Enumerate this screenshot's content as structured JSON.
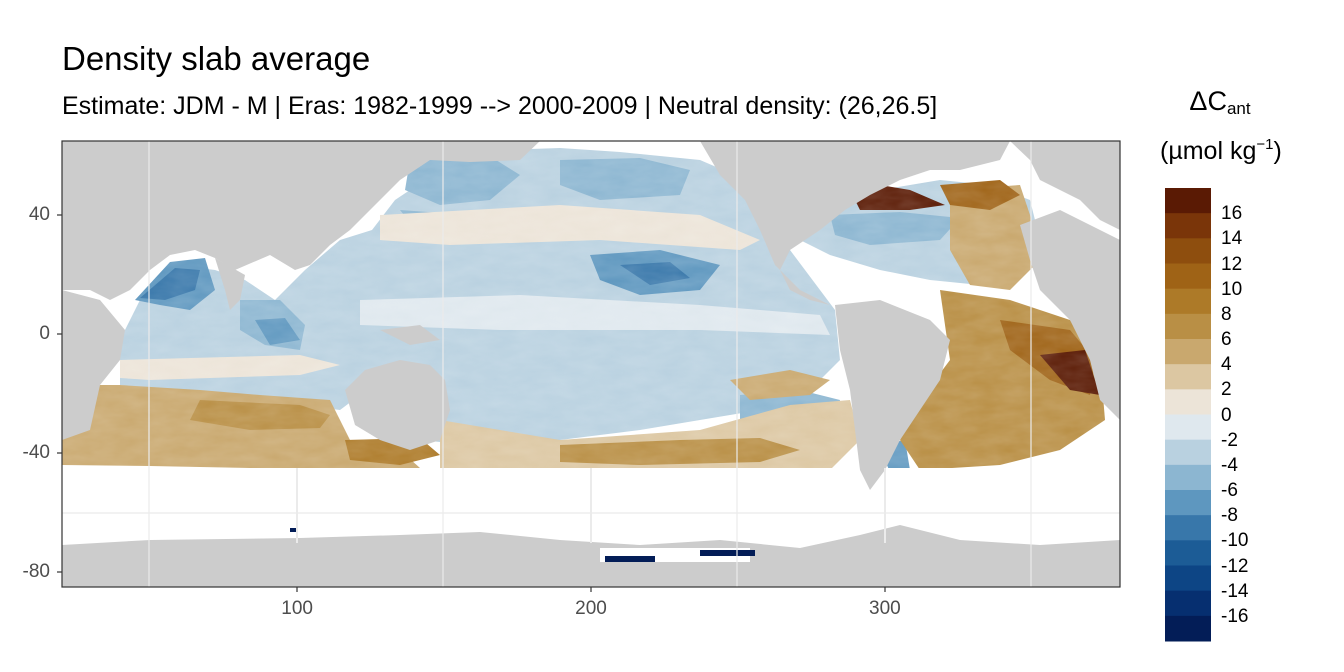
{
  "title": "Density slab average",
  "subtitle": "Estimate: JDM - M | Eras: 1982-1999 --> 2000-2009 | Neutral density: (26,26.5]",
  "legend": {
    "title_main": "ΔC",
    "title_sub": "ant",
    "units_main": "(µmol kg",
    "units_sup": "−1",
    "units_close": ")",
    "labels": [
      "16",
      "14",
      "12",
      "10",
      "8",
      "6",
      "4",
      "2",
      "0",
      "-2",
      "-4",
      "-6",
      "-8",
      "-10",
      "-12",
      "-14",
      "-16"
    ],
    "colors": [
      "#5a1a04",
      "#7a3509",
      "#8e4e0e",
      "#9f6316",
      "#ad7a28",
      "#b98f45",
      "#c9a86e",
      "#dcc7a2",
      "#ece4d8",
      "#dfe8ee",
      "#b9d1e0",
      "#8cb6d1",
      "#5e97bf",
      "#3877aa",
      "#1c5c96",
      "#0d4585",
      "#062f70",
      "#031d57"
    ]
  },
  "map": {
    "x_ticks": [
      {
        "value": 100,
        "label": "100"
      },
      {
        "value": 200,
        "label": "200"
      },
      {
        "value": 300,
        "label": "300"
      }
    ],
    "y_ticks": [
      {
        "value": 40,
        "label": "40"
      },
      {
        "value": 0,
        "label": "0"
      },
      {
        "value": -40,
        "label": "-40"
      },
      {
        "value": -80,
        "label": "-80"
      }
    ],
    "xlim": [
      20,
      380
    ],
    "ylim": [
      -85,
      65
    ],
    "land_color": "#cccccc",
    "nodata_color": "#ffffff"
  }
}
